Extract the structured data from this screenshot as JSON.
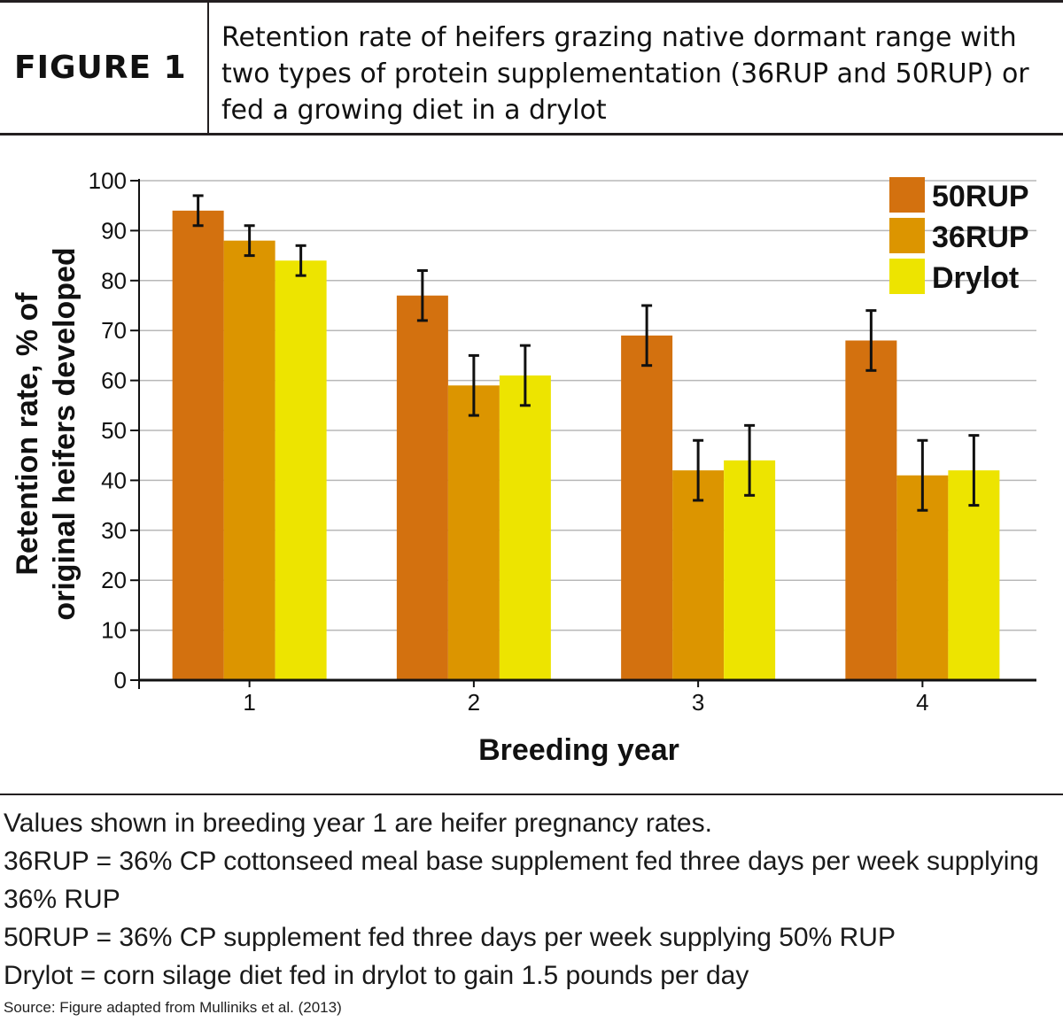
{
  "header": {
    "figure_label": "FIGURE 1",
    "title": "Retention rate of heifers grazing native dormant range with two types of protein supplementation (36RUP and 50RUP) or fed a growing diet in a drylot"
  },
  "chart_data": {
    "type": "bar",
    "title": "",
    "xlabel": "Breeding year",
    "ylabel": "Retention rate, % of original heifers developed",
    "categories": [
      "1",
      "2",
      "3",
      "4"
    ],
    "ylim": [
      0,
      100
    ],
    "yticks": [
      0,
      10,
      20,
      30,
      40,
      50,
      60,
      70,
      80,
      90,
      100
    ],
    "grid": true,
    "legend_position": "top-right",
    "series": [
      {
        "name": "50RUP",
        "color": "#d3710f",
        "values": [
          94,
          77,
          69,
          68
        ],
        "error": [
          3,
          5,
          6,
          6
        ]
      },
      {
        "name": "36RUP",
        "color": "#dc9500",
        "values": [
          88,
          59,
          42,
          41
        ],
        "error": [
          3,
          6,
          6,
          7
        ]
      },
      {
        "name": "Drylot",
        "color": "#ede400",
        "values": [
          84,
          61,
          44,
          42
        ],
        "error": [
          3,
          6,
          7,
          7
        ]
      }
    ]
  },
  "notes": [
    "Values shown in breeding year 1 are heifer pregnancy rates.",
    "36RUP = 36% CP cottonseed meal base supplement fed three days per week supplying 36% RUP",
    "50RUP = 36% CP supplement fed three days per week supplying 50% RUP",
    "Drylot = corn silage diet fed in drylot to gain 1.5 pounds per day"
  ],
  "source": "Source: Figure adapted from Mulliniks et al. (2013)"
}
